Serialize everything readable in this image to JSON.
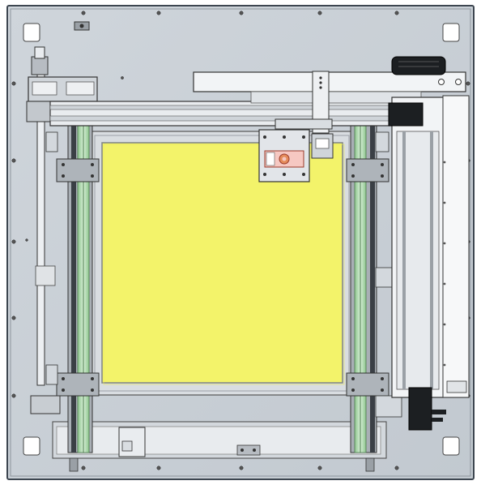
{
  "scene": {
    "subject": "cad-top-view-xy-gantry-machine",
    "colors": {
      "background": "#ffffff",
      "base_plate": "#c9cfd6",
      "plate_edge": "#3d4650",
      "bed_frame": "#d9dde1",
      "bed_surface": "#f3f36a",
      "bed_border": "#9aa0a6",
      "rail_green": "#bfe2bf",
      "rail_dark": "#3a3f45",
      "metal_light": "#e9ecef",
      "metal_mid": "#b7bcc2",
      "motor_black": "#1c1f22",
      "carriage_red": "#efb7b0",
      "carriage_orange": "#e48b5a"
    },
    "components": [
      {
        "name": "base-plate",
        "label": ""
      },
      {
        "name": "print-bed",
        "label": ""
      },
      {
        "name": "x-gantry-beam",
        "label": ""
      },
      {
        "name": "tool-carriage",
        "label": ""
      },
      {
        "name": "left-y-rail",
        "label": ""
      },
      {
        "name": "right-y-rail",
        "label": ""
      },
      {
        "name": "right-z-column",
        "label": ""
      },
      {
        "name": "stepper-motor-top",
        "label": ""
      },
      {
        "name": "stepper-motor-bottom",
        "label": ""
      },
      {
        "name": "lead-screw-left",
        "label": ""
      }
    ]
  }
}
